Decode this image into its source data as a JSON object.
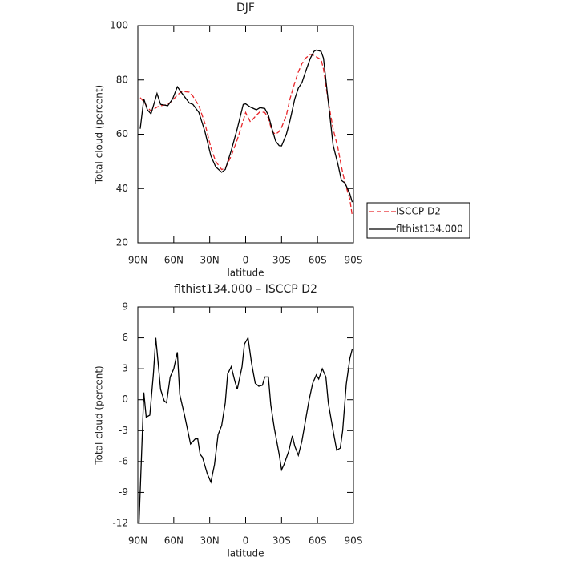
{
  "chart_data": [
    {
      "type": "line",
      "title": "DJF",
      "x_label": "latitude",
      "y_label": "Total cloud (percent)",
      "x": [
        88,
        85,
        82,
        79,
        74,
        71,
        65,
        61,
        57,
        53,
        47,
        44,
        39,
        34,
        29,
        25,
        20,
        17,
        12,
        7,
        2,
        0,
        -4,
        -9,
        -12,
        -16,
        -19,
        -22,
        -25,
        -28,
        -30,
        -34,
        -37,
        -41,
        -44,
        -47,
        -50,
        -54,
        -57,
        -59,
        -63,
        -65,
        -69,
        -73,
        -77,
        -80,
        -83,
        -87,
        -89
      ],
      "series": [
        {
          "name": "ISCCP D2",
          "color": "#e8262a",
          "line_style": "dashed",
          "values": [
            73.5,
            72,
            70,
            68.5,
            70,
            70.5,
            71,
            72.5,
            74.5,
            75.8,
            75.5,
            74,
            70.5,
            64,
            55,
            50,
            47,
            47.5,
            52,
            58,
            65,
            68,
            64.5,
            67,
            68.3,
            68,
            66,
            61,
            60,
            61,
            62.5,
            67,
            73,
            79,
            83,
            86,
            88,
            89.5,
            89,
            88.5,
            87.5,
            84,
            72,
            62,
            55,
            48,
            42,
            36,
            30
          ]
        },
        {
          "name": "flthist134.000",
          "color": "#000000",
          "line_style": "solid",
          "values": [
            62,
            73,
            69,
            67.5,
            75,
            71,
            70.5,
            73,
            77.5,
            75,
            71.5,
            71,
            68,
            61,
            52,
            48,
            46,
            47,
            54,
            62,
            71,
            71.2,
            70,
            69,
            69.8,
            69.5,
            67,
            62,
            57.5,
            55.8,
            55.7,
            60,
            65,
            73,
            77,
            79,
            83,
            88,
            90.5,
            91,
            90.5,
            88,
            72,
            56,
            49,
            43,
            42,
            38,
            35
          ]
        }
      ],
      "xlim": [
        90,
        -90
      ],
      "xticks": [
        {
          "value": 90,
          "label": "90N"
        },
        {
          "value": 60,
          "label": "60N"
        },
        {
          "value": 30,
          "label": "30N"
        },
        0,
        {
          "value": -30,
          "label": "30S"
        },
        {
          "value": -60,
          "label": "60S"
        },
        {
          "value": -90,
          "label": "90S"
        }
      ],
      "ylim": [
        20,
        100
      ],
      "yticks": [
        20,
        40,
        60,
        80,
        100
      ],
      "legend": "right"
    },
    {
      "type": "line",
      "title": "flthist134.000 – ISCCP D2",
      "x_label": "latitude",
      "y_label": "Total cloud (percent)",
      "x": [
        89,
        85,
        83,
        80,
        77,
        75,
        71,
        68,
        66,
        63,
        60,
        57,
        55,
        51,
        46,
        42,
        40,
        38,
        36,
        32,
        29,
        26,
        23,
        20,
        17,
        15,
        12,
        9,
        7,
        3,
        1,
        -2,
        -5,
        -8,
        -11,
        -14,
        -16,
        -19,
        -21,
        -24,
        -28,
        -30,
        -32,
        -36,
        -39,
        -41,
        -44,
        -47,
        -50,
        -53,
        -56,
        -59,
        -61,
        -64,
        -67,
        -69,
        -73,
        -76,
        -79,
        -81,
        -84,
        -87,
        -89
      ],
      "series": [
        {
          "name": "flthist134.000 – ISCCP D2",
          "color": "#000000",
          "line_style": "solid",
          "values": [
            -12,
            0.7,
            -1.7,
            -1.5,
            2.5,
            6,
            1,
            -0.1,
            -0.3,
            2.2,
            3,
            4.6,
            0.5,
            -1.5,
            -4.3,
            -3.8,
            -3.8,
            -5.3,
            -5.6,
            -7.2,
            -8,
            -6.3,
            -3.4,
            -2.5,
            -0.3,
            2.5,
            3.2,
            1.8,
            1,
            3.2,
            5.4,
            6,
            3.5,
            1.6,
            1.3,
            1.4,
            2.2,
            2.2,
            -0.5,
            -2.8,
            -5.3,
            -6.8,
            -6.3,
            -5,
            -3.5,
            -4.5,
            -5.4,
            -4,
            -2,
            0,
            1.6,
            2.4,
            2,
            3,
            2.2,
            -0.3,
            -3,
            -4.9,
            -4.7,
            -3,
            1.5,
            4,
            4.9
          ]
        }
      ],
      "xlim": [
        90,
        -90
      ],
      "xticks": [
        {
          "value": 90,
          "label": "90N"
        },
        {
          "value": 60,
          "label": "60N"
        },
        {
          "value": 30,
          "label": "30N"
        },
        0,
        {
          "value": -30,
          "label": "30S"
        },
        {
          "value": -60,
          "label": "60S"
        },
        {
          "value": -90,
          "label": "90S"
        }
      ],
      "ylim": [
        -12,
        9
      ],
      "yticks": [
        -12,
        -9,
        -6,
        -3,
        0,
        3,
        6,
        9
      ]
    }
  ]
}
